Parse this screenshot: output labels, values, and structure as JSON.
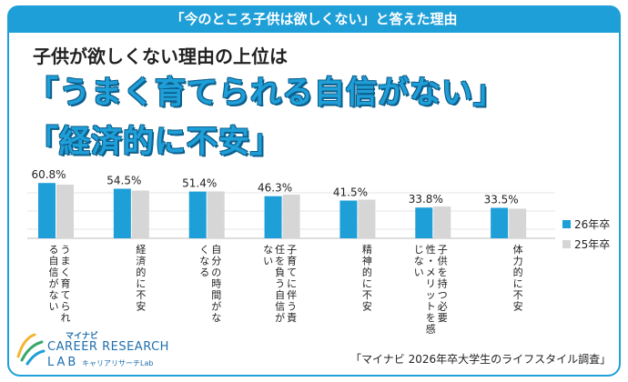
{
  "header": {
    "title": "「今のところ子供は欲しくない」と答えた理由"
  },
  "subtitle": "子供が欲しくない理由の上位は",
  "headline1": "「うまく育てられる自信がない」",
  "headline2": "「経済的に不安」",
  "chart_data": {
    "type": "bar",
    "categories": [
      "うまく育てられる自信がない",
      "経済的に不安",
      "自分の時間がなくなる",
      "子育てに伴う責任を負う自信がない",
      "精神的に不安",
      "子供を持つ必要性・メリットを感じない",
      "体力的に不安"
    ],
    "category_lines": [
      [
        "うまく育てられ",
        "る自信がない"
      ],
      [
        "経済的に不安"
      ],
      [
        "自分の時間がな",
        "くなる"
      ],
      [
        "子育てに伴う責",
        "任を負う自信が",
        "ない"
      ],
      [
        "精神的に不安"
      ],
      [
        "子供を持つ必要",
        "性・メリットを感",
        "じない"
      ],
      [
        "体力的に不安"
      ]
    ],
    "series": [
      {
        "name": "26年卒",
        "color": "#1f9fd8",
        "values": [
          60.8,
          54.5,
          51.4,
          46.3,
          41.5,
          33.8,
          33.5
        ],
        "labels": [
          "60.8%",
          "54.5%",
          "51.4%",
          "46.3%",
          "41.5%",
          "33.8%",
          "33.5%"
        ]
      },
      {
        "name": "25年卒",
        "color": "#d6d6d6",
        "values": [
          59,
          52.5,
          51.5,
          48,
          42.5,
          35,
          32.5
        ]
      }
    ],
    "ylim": [
      0,
      70
    ],
    "grid": true
  },
  "legend": [
    {
      "label": "26年卒",
      "color": "#1f9fd8"
    },
    {
      "label": "25年卒",
      "color": "#d6d6d6"
    }
  ],
  "logo": {
    "maker": "マイナビ",
    "line1": "CAREER RESEARCH",
    "line2": "LAB",
    "line2_sub": "キャリアリサーチLab"
  },
  "source": "「マイナビ 2026年卒大学生のライフスタイル調査」"
}
